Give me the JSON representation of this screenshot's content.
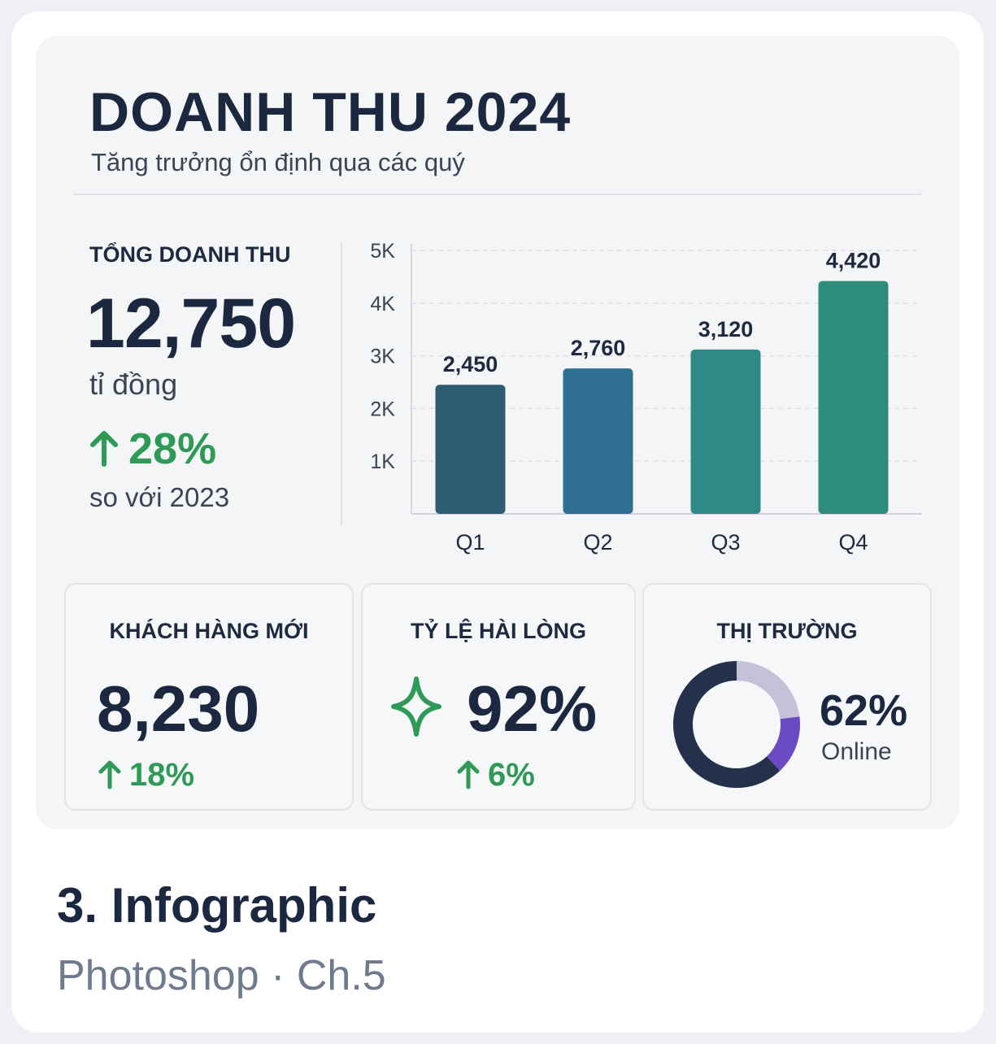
{
  "header": {
    "title": "DOANH THU 2024",
    "subtitle": "Tăng trưởng ổn định qua các quý"
  },
  "kpi": {
    "label": "TỔNG DOANH THU",
    "value": "12,750",
    "unit": "tỉ đồng",
    "change": "28%",
    "compare": "so với 2023"
  },
  "cards": {
    "customers": {
      "title": "KHÁCH HÀNG MỚI",
      "value": "8,230",
      "change": "18%"
    },
    "satisfaction": {
      "title": "TỶ LỆ HÀI LÒNG",
      "value": "92%",
      "change": "6%"
    },
    "market": {
      "title": "THỊ TRƯỜNG",
      "value": "62%",
      "label": "Online",
      "online_fraction": 0.62
    }
  },
  "footer": {
    "title": "3. Infographic",
    "subtitle": "Photoshop · Ch.5"
  },
  "colors": {
    "positive": "#2f9a57",
    "dark": "#1b2840",
    "donut_dark": "#25304a",
    "donut_purple": "#6a4bc4",
    "donut_light": "#c3c2d8"
  },
  "icons": [
    "arrow-up-icon",
    "sparkle-star-icon"
  ],
  "chart_data": {
    "type": "bar",
    "categories": [
      "Q1",
      "Q2",
      "Q3",
      "Q4"
    ],
    "values": [
      2450,
      2760,
      3120,
      4420
    ],
    "value_labels": [
      "2,450",
      "2,760",
      "3,120",
      "4,420"
    ],
    "ylim": [
      0,
      5000
    ],
    "yticks": [
      1000,
      2000,
      3000,
      4000,
      5000
    ],
    "ytick_labels": [
      "1K",
      "2K",
      "3K",
      "4K",
      "5K"
    ],
    "bar_colors": [
      "#2c5d72",
      "#2f7092",
      "#2f8a87",
      "#2e8c7b"
    ],
    "grid": true
  }
}
